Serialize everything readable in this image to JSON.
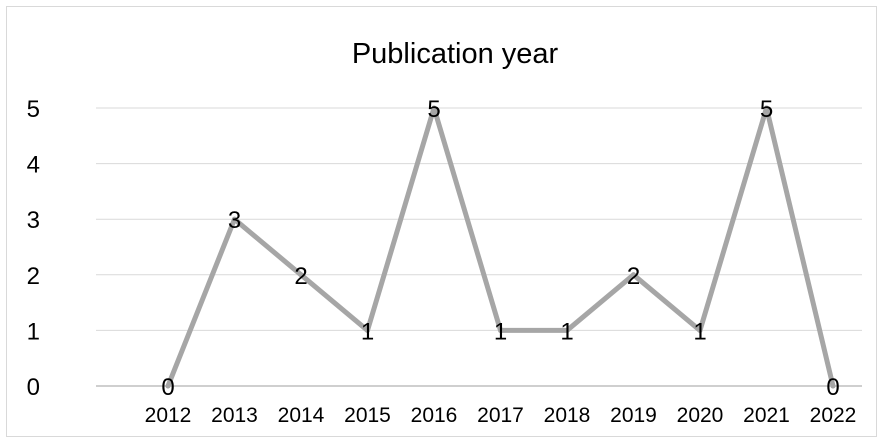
{
  "chart_data": {
    "type": "line",
    "title": "Publication year",
    "xlabel": "",
    "ylabel": "",
    "categories": [
      "2012",
      "2013",
      "2014",
      "2015",
      "2016",
      "2017",
      "2018",
      "2019",
      "2020",
      "2021",
      "2022"
    ],
    "series": [
      {
        "values": [
          0,
          3,
          2,
          1,
          5,
          1,
          1,
          2,
          1,
          5,
          0
        ]
      }
    ],
    "y_ticks": [
      "0",
      "1",
      "2",
      "3",
      "4",
      "5"
    ],
    "ylim": [
      0,
      5
    ],
    "grid": true,
    "legend": "none",
    "data_labels": true,
    "colors": {
      "line": "#a6a6a6",
      "grid": "#d9d9d9",
      "axis": "#bfbfbf",
      "border": "#d9d9d9"
    }
  }
}
